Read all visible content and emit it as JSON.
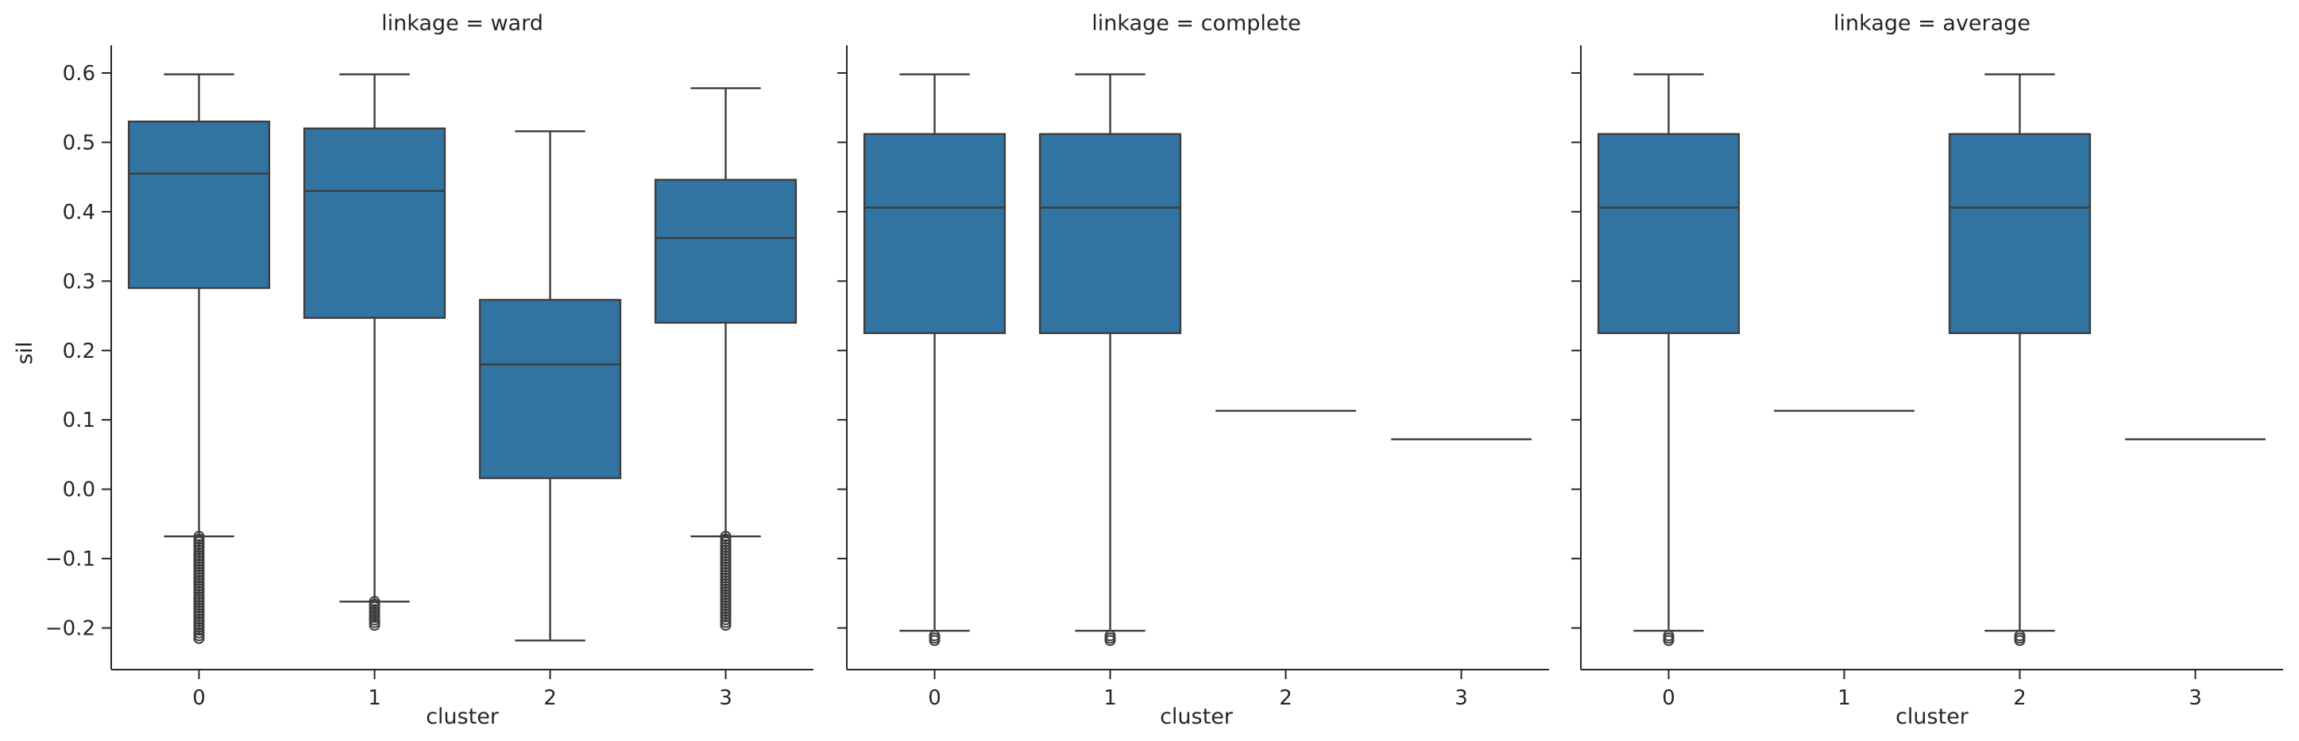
{
  "chart_data": [
    {
      "type": "box",
      "title": "linkage = ward",
      "xlabel": "cluster",
      "ylabel": "sil",
      "categories": [
        "0",
        "1",
        "2",
        "3"
      ],
      "ylim": [
        -0.26,
        0.64
      ],
      "yticks": [
        "0.6",
        "0.5",
        "0.4",
        "0.3",
        "0.2",
        "0.1",
        "0.0",
        "−0.1",
        "−0.2"
      ],
      "boxes": [
        {
          "cluster": "0",
          "whisker_low": -0.068,
          "q1": 0.29,
          "median": 0.455,
          "q3": 0.53,
          "whisker_high": 0.598,
          "outliers_range": [
            -0.215,
            -0.068
          ]
        },
        {
          "cluster": "1",
          "whisker_low": -0.162,
          "q1": 0.247,
          "median": 0.43,
          "q3": 0.52,
          "whisker_high": 0.598,
          "outliers_range": [
            -0.196,
            -0.162
          ]
        },
        {
          "cluster": "2",
          "whisker_low": -0.218,
          "q1": 0.016,
          "median": 0.18,
          "q3": 0.273,
          "whisker_high": 0.516,
          "outliers_range": null
        },
        {
          "cluster": "3",
          "whisker_low": -0.068,
          "q1": 0.24,
          "median": 0.362,
          "q3": 0.446,
          "whisker_high": 0.578,
          "outliers_range": [
            -0.196,
            -0.068
          ]
        }
      ]
    },
    {
      "type": "box",
      "title": "linkage = complete",
      "xlabel": "cluster",
      "ylabel": "",
      "categories": [
        "0",
        "1",
        "2",
        "3"
      ],
      "ylim": [
        -0.26,
        0.64
      ],
      "boxes": [
        {
          "cluster": "0",
          "whisker_low": -0.204,
          "q1": 0.225,
          "median": 0.406,
          "q3": 0.512,
          "whisker_high": 0.598,
          "outliers_range": [
            -0.218,
            -0.211
          ]
        },
        {
          "cluster": "1",
          "whisker_low": -0.204,
          "q1": 0.225,
          "median": 0.406,
          "q3": 0.512,
          "whisker_high": 0.598,
          "outliers_range": [
            -0.218,
            -0.211
          ]
        },
        {
          "cluster": "2",
          "whisker_low": 0.113,
          "q1": 0.113,
          "median": 0.113,
          "q3": 0.113,
          "whisker_high": 0.113,
          "outliers_range": null
        },
        {
          "cluster": "3",
          "whisker_low": 0.072,
          "q1": 0.072,
          "median": 0.072,
          "q3": 0.072,
          "whisker_high": 0.072,
          "outliers_range": null
        }
      ]
    },
    {
      "type": "box",
      "title": "linkage = average",
      "xlabel": "cluster",
      "ylabel": "",
      "categories": [
        "0",
        "1",
        "2",
        "3"
      ],
      "ylim": [
        -0.26,
        0.64
      ],
      "boxes": [
        {
          "cluster": "0",
          "whisker_low": -0.204,
          "q1": 0.225,
          "median": 0.406,
          "q3": 0.512,
          "whisker_high": 0.598,
          "outliers_range": [
            -0.218,
            -0.211
          ]
        },
        {
          "cluster": "1",
          "whisker_low": 0.113,
          "q1": 0.113,
          "median": 0.113,
          "q3": 0.113,
          "whisker_high": 0.113,
          "outliers_range": null
        },
        {
          "cluster": "2",
          "whisker_low": -0.204,
          "q1": 0.225,
          "median": 0.406,
          "q3": 0.512,
          "whisker_high": 0.598,
          "outliers_range": [
            -0.218,
            -0.211
          ]
        },
        {
          "cluster": "3",
          "whisker_low": 0.072,
          "q1": 0.072,
          "median": 0.072,
          "q3": 0.072,
          "whisker_high": 0.072,
          "outliers_range": null
        }
      ]
    }
  ],
  "colors": {
    "box_fill": "#3274a1",
    "line": "#3d3d3d",
    "axis": "#262626",
    "background": "#ffffff"
  }
}
